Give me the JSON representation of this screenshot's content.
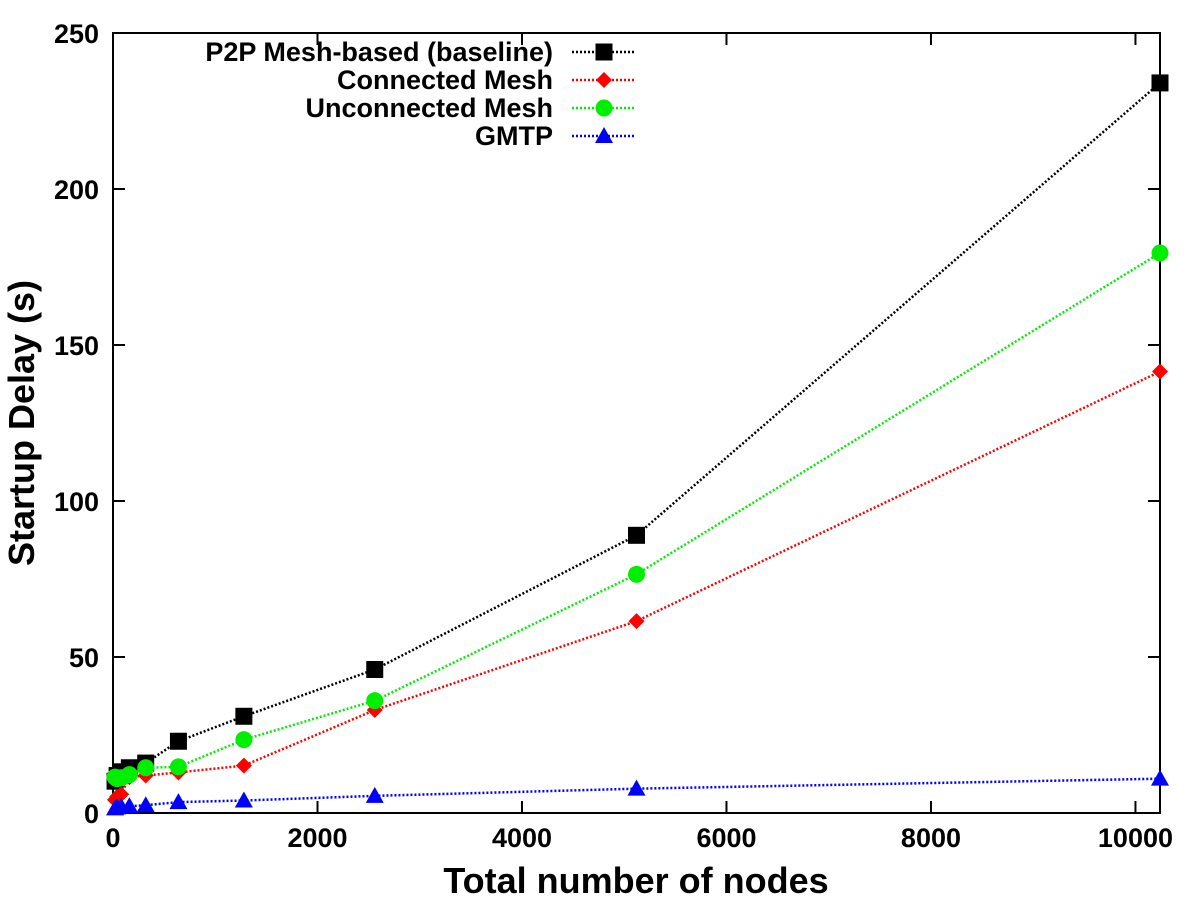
{
  "chart_data": {
    "type": "line",
    "xlabel": "Total number of nodes",
    "ylabel": "Startup Delay (s)",
    "xlim": [
      0,
      10240
    ],
    "ylim": [
      0,
      250
    ],
    "x_ticks": [
      0,
      2000,
      4000,
      6000,
      8000,
      10000
    ],
    "y_ticks": [
      0,
      50,
      100,
      150,
      200,
      250
    ],
    "x": [
      20,
      40,
      80,
      160,
      320,
      640,
      1280,
      2560,
      5120,
      10240
    ],
    "grid": false,
    "legend_position": "top-left",
    "series": [
      {
        "name": "P2P Mesh-based (baseline)",
        "color": "#000000",
        "marker": "square",
        "values": [
          10.2,
          12.0,
          13.2,
          14.5,
          16.0,
          23.0,
          31.0,
          46.0,
          89.0,
          234.0
        ]
      },
      {
        "name": "Connected Mesh",
        "color": "#ff0000",
        "marker": "diamond",
        "values": [
          4.2,
          5.2,
          6.0,
          11.5,
          12.0,
          13.0,
          15.2,
          33.0,
          61.5,
          141.5
        ]
      },
      {
        "name": "Unconnected Mesh",
        "color": "#00ee00",
        "marker": "circle",
        "values": [
          11.5,
          11.0,
          11.3,
          12.3,
          14.5,
          14.8,
          23.5,
          36.0,
          76.5,
          179.5
        ]
      },
      {
        "name": "GMTP",
        "color": "#0000ff",
        "marker": "triangle",
        "values": [
          1.5,
          1.8,
          2.1,
          2.2,
          2.5,
          3.5,
          4.0,
          5.5,
          7.8,
          11.0
        ]
      }
    ]
  }
}
